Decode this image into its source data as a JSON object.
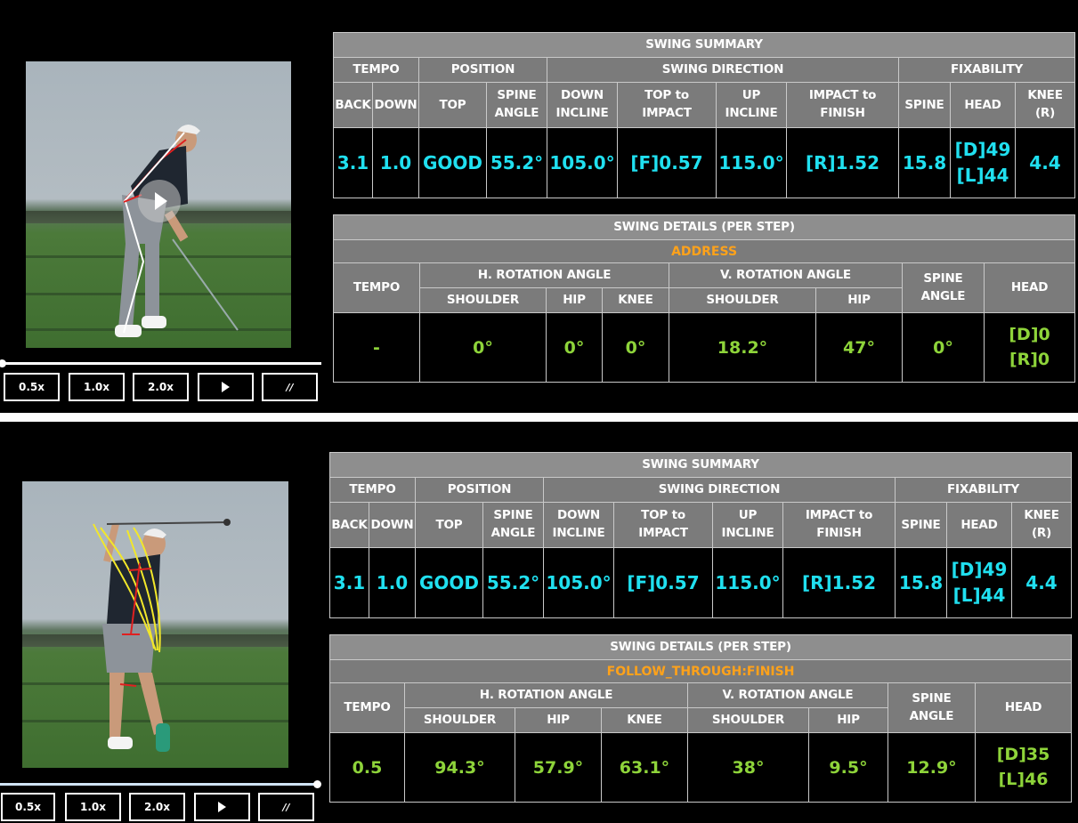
{
  "controls": {
    "speed_half": "0.5x",
    "speed_normal": "1.0x",
    "speed_double": "2.0x",
    "pause_label": "//"
  },
  "labels": {
    "swing_summary": "SWING SUMMARY",
    "tempo": "TEMPO",
    "position": "POSITION",
    "swing_direction": "SWING DIRECTION",
    "fixability": "FIXABILITY",
    "back": "BACK",
    "down": "DOWN",
    "top": "TOP",
    "spine_angle_l1": "SPINE",
    "spine_angle_l2": "ANGLE",
    "down_incline_l1": "DOWN",
    "down_incline_l2": "INCLINE",
    "top_to_impact_l1": "TOP to",
    "top_to_impact_l2": "IMPACT",
    "up_incline_l1": "UP",
    "up_incline_l2": "INCLINE",
    "impact_to_finish_l1": "IMPACT to",
    "impact_to_finish_l2": "FINISH",
    "spine": "SPINE",
    "head": "HEAD",
    "knee_r_l1": "KNEE",
    "knee_r_l2": "(R)",
    "swing_details": "SWING DETAILS (PER STEP)",
    "h_rotation": "H. ROTATION ANGLE",
    "v_rotation": "V. ROTATION ANGLE",
    "shoulder": "SHOULDER",
    "hip": "HIP",
    "knee": "KNEE"
  },
  "panels": [
    {
      "summary": {
        "back": "3.1",
        "down": "1.0",
        "top": "GOOD",
        "spine_angle": "55.2°",
        "down_incline": "105.0°",
        "top_to_impact": "[F]0.57",
        "up_incline": "115.0°",
        "impact_to_finish": "[R]1.52",
        "spine": "15.8",
        "head_d": "[D]49",
        "head_l": "[L]44",
        "knee_r": "4.4"
      },
      "details": {
        "step": "ADDRESS",
        "tempo": "-",
        "h_shoulder": "0°",
        "h_hip": "0°",
        "h_knee": "0°",
        "v_shoulder": "18.2°",
        "v_hip": "47°",
        "spine_angle": "0°",
        "head_1": "[D]0",
        "head_2": "[R]0"
      }
    },
    {
      "summary": {
        "back": "3.1",
        "down": "1.0",
        "top": "GOOD",
        "spine_angle": "55.2°",
        "down_incline": "105.0°",
        "top_to_impact": "[F]0.57",
        "up_incline": "115.0°",
        "impact_to_finish": "[R]1.52",
        "spine": "15.8",
        "head_d": "[D]49",
        "head_l": "[L]44",
        "knee_r": "4.4"
      },
      "details": {
        "step": "FOLLOW_THROUGH:FINISH",
        "tempo": "0.5",
        "h_shoulder": "94.3°",
        "h_hip": "57.9°",
        "h_knee": "63.1°",
        "v_shoulder": "38°",
        "v_hip": "9.5°",
        "spine_angle": "12.9°",
        "head_1": "[D]35",
        "head_2": "[L]46"
      }
    }
  ],
  "colors": {
    "cyan_value": "#20e0f0",
    "green_value": "#8ed43a",
    "step_orange": "#ffa21a",
    "header_gray": "#7b7b7b"
  }
}
